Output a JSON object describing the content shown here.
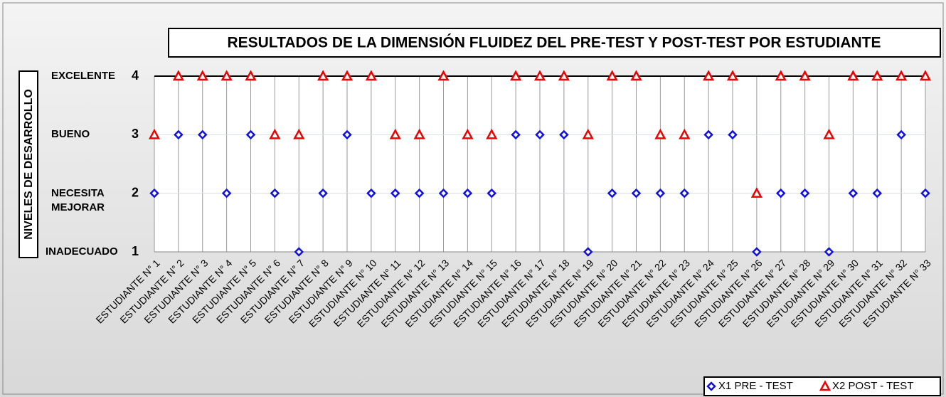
{
  "chart_data": {
    "type": "scatter",
    "title": "RESULTADOS DE LA DIMENSIÓN FLUIDEZ DEL PRE-TEST Y POST-TEST POR ESTUDIANTE",
    "y_label": "NIVELES DE DESARROLLO",
    "categories": [
      "ESTUDIANTE N° 1",
      "ESTUDIANTE N° 2",
      "ESTUDIANTE N° 3",
      "ESTUDIANTE N° 4",
      "ESTUDIANTE N° 5",
      "ESTUDIANTE N° 6",
      "ESTUDIANTE N° 7",
      "ESTUDIANTE N° 8",
      "ESTUDIANTE N° 9",
      "ESTUDIANTE N° 10",
      "ESTUDIANTE N° 11",
      "ESTUDIANTE N° 12",
      "ESTUDIANTE N° 13",
      "ESTUDIANTE N° 14",
      "ESTUDIANTE N° 15",
      "ESTUDIANTE N° 16",
      "ESTUDIANTE N° 17",
      "ESTUDIANTE N° 18",
      "ESTUDIANTE N° 19",
      "ESTUDIANTE N° 20",
      "ESTUDIANTE N° 21",
      "ESTUDIANTE N° 22",
      "ESTUDIANTE N° 23",
      "ESTUDIANTE N° 24",
      "ESTUDIANTE N° 25",
      "ESTUDIANTE N° 26",
      "ESTUDIANTE N° 27",
      "ESTUDIANTE N° 28",
      "ESTUDIANTE N° 29",
      "ESTUDIANTE N° 30",
      "ESTUDIANTE N° 31",
      "ESTUDIANTE N° 32",
      "ESTUDIANTE N° 33"
    ],
    "series": [
      {
        "name": "X1 PRE - TEST",
        "color": "#1010e0",
        "marker": "diamond",
        "values": [
          2,
          3,
          3,
          2,
          3,
          2,
          1,
          2,
          3,
          2,
          2,
          2,
          2,
          2,
          2,
          3,
          3,
          3,
          1,
          2,
          2,
          2,
          2,
          3,
          3,
          1,
          2,
          2,
          1,
          2,
          2,
          3,
          2
        ]
      },
      {
        "name": "X2 POST - TEST",
        "color": "#ee0000",
        "marker": "triangle",
        "values": [
          3,
          4,
          4,
          4,
          4,
          3,
          3,
          4,
          4,
          4,
          3,
          3,
          4,
          3,
          3,
          4,
          4,
          4,
          3,
          4,
          4,
          3,
          3,
          4,
          4,
          2,
          4,
          4,
          3,
          4,
          4,
          4,
          4
        ]
      }
    ],
    "ylim": [
      1,
      4
    ],
    "yticks": [
      1,
      2,
      3,
      4
    ],
    "level_labels": [
      "INADECUADO",
      "NECESITA MEJORAR",
      "BUENO",
      "EXCELENTE"
    ],
    "grid": true,
    "legend": "bottom-right"
  }
}
